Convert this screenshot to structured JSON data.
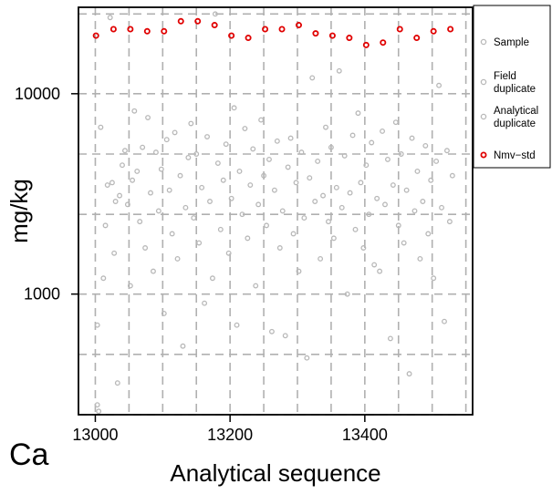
{
  "element_label": "Ca",
  "colors": {
    "sample": "#b8b8b8",
    "nmv_std": "#e00000",
    "grid": "#b0b0b0"
  },
  "legend": {
    "items": [
      {
        "lines": [
          "Sample"
        ],
        "color": "#b8b8b8"
      },
      {
        "lines": [
          "Field",
          " duplicate"
        ],
        "color": "#b8b8b8"
      },
      {
        "lines": [
          "Analytical",
          "duplicate"
        ],
        "color": "#b8b8b8"
      },
      {
        "lines": [
          "Nmv−std"
        ],
        "color": "#e00000"
      }
    ]
  },
  "chart_data": {
    "type": "scatter",
    "title": "",
    "xlabel": "Analytical sequence",
    "ylabel": "mg/kg",
    "x_scale": "linear",
    "y_scale": "log",
    "xlim": [
      12975,
      13560
    ],
    "ylim": [
      250,
      27000
    ],
    "x_ticks": [
      13000,
      13200,
      13400
    ],
    "y_ticks": [
      1000,
      10000
    ],
    "x_grid": [
      13000,
      13050,
      13100,
      13150,
      13200,
      13250,
      13300,
      13350,
      13400,
      13450,
      13500,
      13550
    ],
    "y_grid": [
      250,
      500,
      1000,
      2500,
      5000,
      10000,
      25000
    ],
    "grid": true,
    "legend_position": "outside-right",
    "series": [
      {
        "name": "Sample",
        "points": [
          [
            13003,
            280
          ],
          [
            13003,
            700
          ],
          [
            13005,
            260
          ],
          [
            13008,
            6800
          ],
          [
            13012,
            1200
          ],
          [
            13015,
            2200
          ],
          [
            13018,
            3500
          ],
          [
            13022,
            24000
          ],
          [
            13025,
            3600
          ],
          [
            13028,
            1600
          ],
          [
            13030,
            2900
          ],
          [
            13033,
            360
          ],
          [
            13036,
            3100
          ],
          [
            13040,
            4400
          ],
          [
            13044,
            5200
          ],
          [
            13048,
            2800
          ],
          [
            13052,
            1100
          ],
          [
            13055,
            3700
          ],
          [
            13058,
            8200
          ],
          [
            13062,
            4100
          ],
          [
            13066,
            2300
          ],
          [
            13070,
            5400
          ],
          [
            13074,
            1700
          ],
          [
            13078,
            7600
          ],
          [
            13082,
            3200
          ],
          [
            13086,
            1300
          ],
          [
            13090,
            5100
          ],
          [
            13094,
            2600
          ],
          [
            13098,
            4200
          ],
          [
            13102,
            800
          ],
          [
            13106,
            5900
          ],
          [
            13110,
            3300
          ],
          [
            13114,
            2000
          ],
          [
            13118,
            6400
          ],
          [
            13122,
            1500
          ],
          [
            13126,
            3900
          ],
          [
            13130,
            550
          ],
          [
            13134,
            2700
          ],
          [
            13138,
            4800
          ],
          [
            13142,
            7100
          ],
          [
            13146,
            2400
          ],
          [
            13150,
            5000
          ],
          [
            13154,
            1800
          ],
          [
            13158,
            3400
          ],
          [
            13162,
            900
          ],
          [
            13166,
            6100
          ],
          [
            13170,
            2900
          ],
          [
            13174,
            1200
          ],
          [
            13178,
            25000
          ],
          [
            13182,
            4500
          ],
          [
            13186,
            2100
          ],
          [
            13190,
            3700
          ],
          [
            13194,
            5600
          ],
          [
            13198,
            1600
          ],
          [
            13202,
            3000
          ],
          [
            13206,
            8500
          ],
          [
            13210,
            700
          ],
          [
            13214,
            4100
          ],
          [
            13218,
            2500
          ],
          [
            13222,
            6700
          ],
          [
            13226,
            1900
          ],
          [
            13230,
            3500
          ],
          [
            13234,
            5300
          ],
          [
            13238,
            1100
          ],
          [
            13242,
            2800
          ],
          [
            13246,
            7400
          ],
          [
            13250,
            3900
          ],
          [
            13254,
            2200
          ],
          [
            13258,
            4700
          ],
          [
            13262,
            650
          ],
          [
            13266,
            3300
          ],
          [
            13270,
            5800
          ],
          [
            13274,
            1700
          ],
          [
            13278,
            2600
          ],
          [
            13282,
            620
          ],
          [
            13286,
            4300
          ],
          [
            13290,
            6000
          ],
          [
            13294,
            2000
          ],
          [
            13298,
            3600
          ],
          [
            13302,
            1300
          ],
          [
            13306,
            5100
          ],
          [
            13310,
            2400
          ],
          [
            13314,
            480
          ],
          [
            13318,
            3800
          ],
          [
            13322,
            12000
          ],
          [
            13326,
            2900
          ],
          [
            13330,
            4600
          ],
          [
            13334,
            1500
          ],
          [
            13338,
            3100
          ],
          [
            13342,
            6800
          ],
          [
            13346,
            2300
          ],
          [
            13350,
            5400
          ],
          [
            13354,
            1900
          ],
          [
            13358,
            3400
          ],
          [
            13362,
            13000
          ],
          [
            13366,
            2700
          ],
          [
            13370,
            4900
          ],
          [
            13374,
            1000
          ],
          [
            13378,
            3200
          ],
          [
            13382,
            6200
          ],
          [
            13386,
            2100
          ],
          [
            13390,
            8000
          ],
          [
            13394,
            3600
          ],
          [
            13398,
            1700
          ],
          [
            13402,
            4400
          ],
          [
            13406,
            2500
          ],
          [
            13410,
            5700
          ],
          [
            13414,
            1400
          ],
          [
            13418,
            3000
          ],
          [
            13422,
            1300
          ],
          [
            13426,
            6500
          ],
          [
            13430,
            2800
          ],
          [
            13434,
            4700
          ],
          [
            13438,
            600
          ],
          [
            13442,
            3500
          ],
          [
            13446,
            7200
          ],
          [
            13450,
            2200
          ],
          [
            13454,
            5000
          ],
          [
            13458,
            1800
          ],
          [
            13462,
            3300
          ],
          [
            13466,
            400
          ],
          [
            13470,
            6000
          ],
          [
            13474,
            2600
          ],
          [
            13478,
            4100
          ],
          [
            13482,
            1500
          ],
          [
            13486,
            2900
          ],
          [
            13490,
            5500
          ],
          [
            13494,
            2000
          ],
          [
            13498,
            3700
          ],
          [
            13502,
            1200
          ],
          [
            13506,
            4600
          ],
          [
            13510,
            11000
          ],
          [
            13514,
            2700
          ],
          [
            13518,
            730
          ],
          [
            13522,
            5200
          ],
          [
            13526,
            2300
          ],
          [
            13530,
            3900
          ]
        ]
      },
      {
        "name": "Nmv−std",
        "points": [
          [
            13001,
            19500
          ],
          [
            13027,
            21000
          ],
          [
            13052,
            21000
          ],
          [
            13077,
            20500
          ],
          [
            13102,
            20500
          ],
          [
            13127,
            23000
          ],
          [
            13152,
            23000
          ],
          [
            13177,
            22000
          ],
          [
            13202,
            19500
          ],
          [
            13227,
            19000
          ],
          [
            13252,
            21000
          ],
          [
            13277,
            21000
          ],
          [
            13302,
            22000
          ],
          [
            13327,
            20000
          ],
          [
            13352,
            19500
          ],
          [
            13377,
            19000
          ],
          [
            13402,
            17500
          ],
          [
            13427,
            18000
          ],
          [
            13452,
            21000
          ],
          [
            13477,
            19000
          ],
          [
            13502,
            20500
          ],
          [
            13527,
            21000
          ]
        ]
      }
    ]
  }
}
